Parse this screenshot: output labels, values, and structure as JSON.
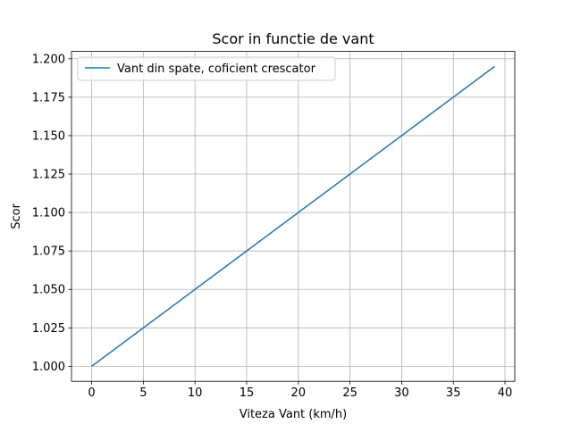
{
  "chart_data": {
    "type": "line",
    "title": "Scor in functie de vant",
    "xlabel": "Viteza Vant (km/h)",
    "ylabel": "Scor",
    "xlim": [
      -1.95,
      40.95
    ],
    "ylim": [
      0.99025,
      1.20475
    ],
    "xticks": [
      0,
      5,
      10,
      15,
      20,
      25,
      30,
      35,
      40
    ],
    "xtick_labels": [
      "0",
      "5",
      "10",
      "15",
      "20",
      "25",
      "30",
      "35",
      "40"
    ],
    "yticks": [
      1.0,
      1.025,
      1.05,
      1.075,
      1.1,
      1.125,
      1.15,
      1.175,
      1.2
    ],
    "ytick_labels": [
      "1.000",
      "1.025",
      "1.050",
      "1.075",
      "1.100",
      "1.125",
      "1.150",
      "1.175",
      "1.200"
    ],
    "grid": true,
    "legend_position": "top-left",
    "series": [
      {
        "name": "Vant din spate, coficient crescator",
        "color": "#1f77b4",
        "x": [
          0,
          39
        ],
        "y": [
          1.0,
          1.195
        ]
      }
    ]
  }
}
